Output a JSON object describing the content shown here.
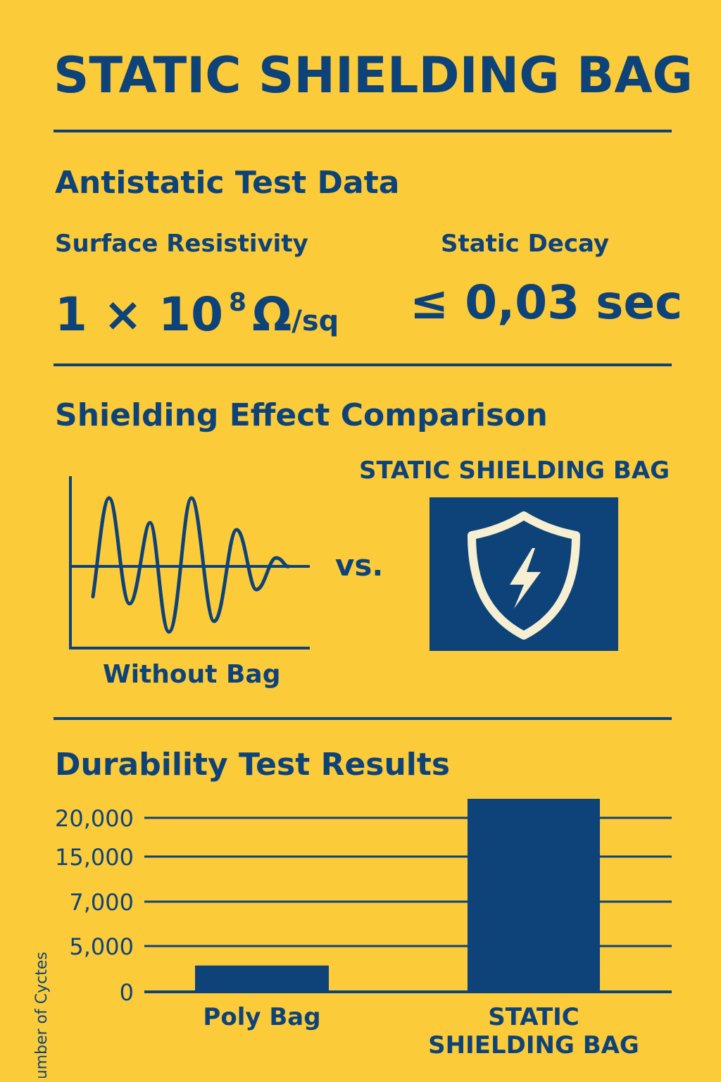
{
  "header": {
    "title": "STATIC SHIELDING BAG"
  },
  "antistatic": {
    "heading": "Antistatic Test Data",
    "resistivity": {
      "label": "Surface Resistivity",
      "mantissa": "1 × 10",
      "exponent": "8",
      "unit": "Ω",
      "unit_suffix": "/sq"
    },
    "decay": {
      "label": "Static Decay",
      "value": "≤ 0,03 sec"
    }
  },
  "shielding": {
    "heading": "Shielding Effect Comparison",
    "without_label": "Without Bag",
    "vs_label": "vs.",
    "with_label": "STATIC SHIELDING BAG",
    "icon": "shield-lightning-icon"
  },
  "durability": {
    "heading": "Durability Test Results"
  },
  "chart_data": {
    "type": "bar",
    "ylabel": "Number of Cyctes",
    "ytick_labels": [
      "0",
      "5,000",
      "7,000",
      "15,000",
      "20,000"
    ],
    "categories": [
      "Poly Bag",
      "STATIC SHIELDING BAG"
    ],
    "values": [
      3000,
      22000
    ],
    "ylim": [
      0,
      22000
    ],
    "grid": true,
    "colors": {
      "bar": "#0E4379",
      "background": "#FBCB3A"
    }
  }
}
